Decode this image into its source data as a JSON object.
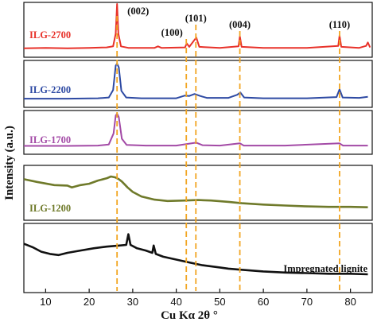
{
  "chart_data": {
    "type": "line",
    "xlabel": "Cu Kα 2θ °",
    "ylabel": "Intensity (a.u.)",
    "xlim": [
      5,
      85
    ],
    "x_ticks": [
      10,
      20,
      30,
      40,
      50,
      60,
      70,
      80
    ],
    "grid": false,
    "layout": "stacked-panels",
    "peak_lines": [
      {
        "label": "(002)",
        "x": 26.4
      },
      {
        "label": "(100)",
        "x": 42.3
      },
      {
        "label": "(101)",
        "x": 44.5
      },
      {
        "label": "(004)",
        "x": 54.6
      },
      {
        "label": "(110)",
        "x": 77.5
      }
    ],
    "peak_line_color": "#f2a623",
    "series": [
      {
        "name": "ILG-2700",
        "color": "#e8322a",
        "label_color": "#e8322a",
        "ylim": [
          0,
          100
        ],
        "points": [
          [
            5,
            10
          ],
          [
            10,
            11
          ],
          [
            15,
            10
          ],
          [
            20,
            11
          ],
          [
            24,
            12
          ],
          [
            25.5,
            14
          ],
          [
            26.1,
            40
          ],
          [
            26.4,
            100
          ],
          [
            26.7,
            40
          ],
          [
            27.3,
            14
          ],
          [
            29,
            11
          ],
          [
            35,
            11
          ],
          [
            35.8,
            14
          ],
          [
            36.6,
            11
          ],
          [
            42,
            12
          ],
          [
            42.4,
            20
          ],
          [
            43,
            13
          ],
          [
            44.6,
            32
          ],
          [
            45.3,
            13
          ],
          [
            50,
            11
          ],
          [
            54.3,
            14
          ],
          [
            54.6,
            34
          ],
          [
            55,
            13
          ],
          [
            60,
            11
          ],
          [
            70,
            11
          ],
          [
            77.2,
            15
          ],
          [
            77.5,
            36
          ],
          [
            77.9,
            13
          ],
          [
            82,
            11
          ],
          [
            83.6,
            15
          ],
          [
            84,
            22
          ],
          [
            84.5,
            12
          ]
        ]
      },
      {
        "name": "ILG-2200",
        "color": "#2e4aa3",
        "label_color": "#2e4aa3",
        "ylim": [
          0,
          100
        ],
        "points": [
          [
            5,
            10
          ],
          [
            15,
            10
          ],
          [
            22,
            11
          ],
          [
            24.5,
            13
          ],
          [
            25.5,
            32
          ],
          [
            26.1,
            95
          ],
          [
            26.4,
            100
          ],
          [
            26.8,
            90
          ],
          [
            27.4,
            30
          ],
          [
            28.5,
            13
          ],
          [
            32,
            11
          ],
          [
            40,
            11
          ],
          [
            42,
            18
          ],
          [
            43,
            17
          ],
          [
            44.2,
            22
          ],
          [
            45.5,
            17
          ],
          [
            47,
            12
          ],
          [
            52,
            12
          ],
          [
            54,
            20
          ],
          [
            54.7,
            26
          ],
          [
            55.6,
            13
          ],
          [
            60,
            11
          ],
          [
            70,
            11
          ],
          [
            76.8,
            14
          ],
          [
            77.5,
            34
          ],
          [
            78.2,
            13
          ],
          [
            82,
            12
          ],
          [
            84,
            15
          ]
        ]
      },
      {
        "name": "ILG-1700",
        "color": "#a34aa6",
        "label_color": "#a34aa6",
        "ylim": [
          0,
          100
        ],
        "points": [
          [
            5,
            10
          ],
          [
            15,
            10
          ],
          [
            22,
            11
          ],
          [
            24.5,
            14
          ],
          [
            25.6,
            45
          ],
          [
            26.1,
            95
          ],
          [
            26.4,
            100
          ],
          [
            26.8,
            90
          ],
          [
            27.5,
            30
          ],
          [
            28.6,
            13
          ],
          [
            33,
            11
          ],
          [
            40,
            11
          ],
          [
            42.3,
            15
          ],
          [
            44.6,
            19
          ],
          [
            46,
            12
          ],
          [
            50,
            11
          ],
          [
            54.6,
            17
          ],
          [
            55.5,
            11
          ],
          [
            65,
            11
          ],
          [
            77.5,
            17
          ],
          [
            78.3,
            11
          ],
          [
            84,
            11
          ]
        ]
      },
      {
        "name": "ILG-1200",
        "color": "#6f7a2a",
        "label_color": "#6f7a2a",
        "ylim": [
          0,
          100
        ],
        "points": [
          [
            5,
            80
          ],
          [
            8,
            74
          ],
          [
            12,
            67
          ],
          [
            15,
            66
          ],
          [
            16,
            62
          ],
          [
            18,
            67
          ],
          [
            20,
            70
          ],
          [
            22,
            77
          ],
          [
            24,
            82
          ],
          [
            25,
            86
          ],
          [
            26,
            84
          ],
          [
            26.8,
            80
          ],
          [
            27.5,
            75
          ],
          [
            28.2,
            68
          ],
          [
            28.8,
            62
          ],
          [
            30,
            52
          ],
          [
            32,
            42
          ],
          [
            35,
            35
          ],
          [
            38,
            32
          ],
          [
            42,
            33
          ],
          [
            45,
            34
          ],
          [
            48,
            33
          ],
          [
            52,
            30
          ],
          [
            55,
            27
          ],
          [
            60,
            24
          ],
          [
            65,
            22
          ],
          [
            70,
            20
          ],
          [
            75,
            19
          ],
          [
            80,
            19
          ],
          [
            84,
            18
          ]
        ]
      },
      {
        "name": "Impregnated lignite",
        "color": "#111111",
        "label_color": "#111111",
        "ylim": [
          0,
          100
        ],
        "points": [
          [
            5,
            78
          ],
          [
            7,
            72
          ],
          [
            9,
            64
          ],
          [
            11,
            60
          ],
          [
            13,
            58
          ],
          [
            15,
            62
          ],
          [
            18,
            66
          ],
          [
            21,
            70
          ],
          [
            24,
            73
          ],
          [
            27,
            75
          ],
          [
            28.5,
            76
          ],
          [
            29,
            95
          ],
          [
            29.5,
            76
          ],
          [
            31,
            70
          ],
          [
            33,
            66
          ],
          [
            34.5,
            62
          ],
          [
            34.8,
            75
          ],
          [
            35.3,
            60
          ],
          [
            37,
            55
          ],
          [
            40,
            50
          ],
          [
            43,
            45
          ],
          [
            46,
            40
          ],
          [
            50,
            36
          ],
          [
            52,
            34
          ],
          [
            55,
            32
          ],
          [
            60,
            29
          ],
          [
            65,
            27
          ],
          [
            70,
            26
          ],
          [
            75,
            25
          ],
          [
            80,
            25
          ],
          [
            84,
            24
          ]
        ]
      }
    ]
  }
}
